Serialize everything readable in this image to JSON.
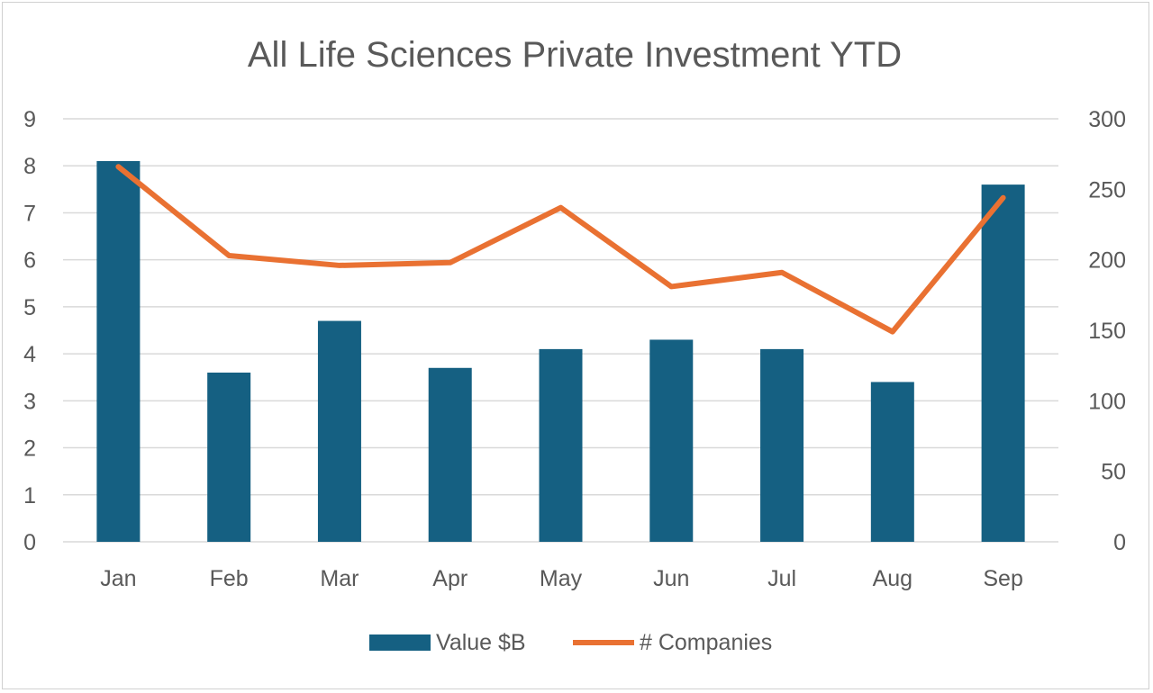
{
  "chart_data": {
    "type": "bar+line",
    "title": "All Life Sciences Private Investment YTD",
    "categories": [
      "Jan",
      "Feb",
      "Mar",
      "Apr",
      "May",
      "Jun",
      "Jul",
      "Aug",
      "Sep"
    ],
    "series": [
      {
        "name": "Value $B",
        "type": "bar",
        "axis": "left",
        "color": "#156082",
        "values": [
          8.1,
          3.6,
          4.7,
          3.7,
          4.1,
          4.3,
          4.1,
          3.4,
          7.6
        ]
      },
      {
        "name": "# Companies",
        "type": "line",
        "axis": "right",
        "color": "#E97132",
        "values": [
          266,
          203,
          196,
          198,
          237,
          181,
          191,
          149,
          244
        ]
      }
    ],
    "y_left": {
      "min": 0,
      "max": 9,
      "ticks": [
        "0",
        "1",
        "2",
        "3",
        "4",
        "5",
        "6",
        "7",
        "8",
        "9"
      ]
    },
    "y_right": {
      "min": 0,
      "max": 300,
      "ticks": [
        "0",
        "50",
        "100",
        "150",
        "200",
        "250",
        "300"
      ]
    },
    "grid": true,
    "legend_position": "bottom"
  }
}
